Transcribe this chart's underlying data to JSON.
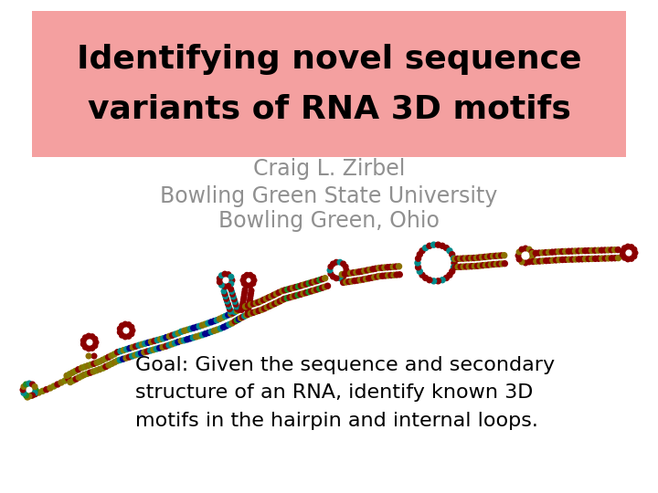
{
  "title_line1": "Identifying novel sequence",
  "title_line2": "variants of RNA 3D motifs",
  "title_bg_color": "#F4A0A0",
  "title_text_color": "#000000",
  "author": "Craig L. Zirbel",
  "institution1": "Bowling Green State University",
  "institution2": "Bowling Green, Ohio",
  "author_color": "#909090",
  "goal_text": "Goal: Given the sequence and secondary\nstructure of an RNA, identify known 3D\nmotifs in the hairpin and internal loops.",
  "bg_color": "#ffffff",
  "title_fontsize": 26,
  "author_fontsize": 17,
  "institution_fontsize": 17,
  "goal_fontsize": 16,
  "dark_red": "#8B0000",
  "dark_green": "#228B22",
  "dark_blue": "#00008B",
  "gold": "#8B7000",
  "teal": "#008B8B",
  "olive": "#808000"
}
